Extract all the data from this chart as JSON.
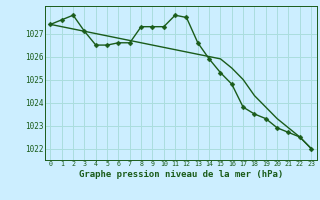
{
  "title": "Graphe pression niveau de la mer (hPa)",
  "bg_color": "#cceeff",
  "grid_color": "#aadddd",
  "line1_color": "#1a5c1a",
  "line2_color": "#1a5c1a",
  "line3_color": "#1a5c1a",
  "x_hours": [
    0,
    1,
    2,
    3,
    4,
    5,
    6,
    7,
    8,
    9,
    10,
    11,
    12,
    13,
    14,
    15,
    16,
    17,
    18,
    19,
    20,
    21,
    22,
    23
  ],
  "line1_values": [
    1027.4,
    1027.6,
    1027.8,
    1027.1,
    1026.5,
    1026.5,
    1026.6,
    1026.6,
    1027.3,
    1027.3,
    1027.3,
    1027.8,
    1027.7,
    1026.6,
    1025.9,
    1025.3,
    1024.8,
    1023.8,
    1023.5,
    1023.3,
    1022.9,
    1022.7,
    1022.5,
    1022.0
  ],
  "line2_values": [
    1027.4,
    1027.3,
    1027.2,
    1027.1,
    1027.0,
    1026.9,
    1026.8,
    1026.7,
    1026.6,
    1026.5,
    1026.4,
    1026.3,
    1026.2,
    1026.1,
    1026.0,
    1025.9,
    1025.5,
    1025.0,
    1024.3,
    1023.8,
    1023.3,
    1022.9,
    1022.5,
    1022.0
  ],
  "ylim_min": 1021.5,
  "ylim_max": 1028.2,
  "yticks": [
    1022,
    1023,
    1024,
    1025,
    1026,
    1027
  ],
  "marker_size": 2.5,
  "linewidth": 1.0,
  "xlabel_fontsize": 6.5,
  "ytick_fontsize": 5.5,
  "xtick_fontsize": 4.8
}
